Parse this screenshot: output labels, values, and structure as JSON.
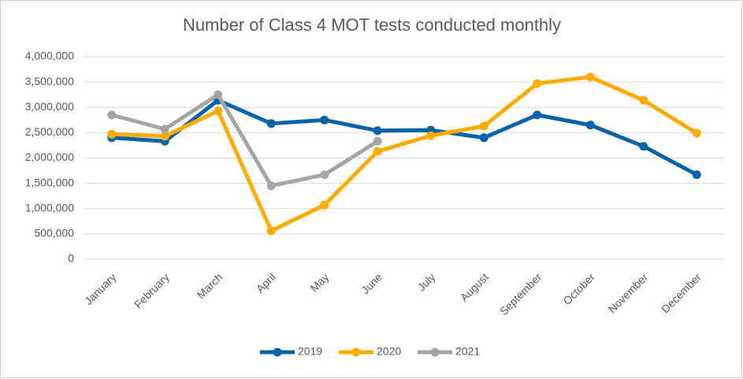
{
  "chart_data": {
    "type": "line",
    "title": "Number of Class 4 MOT tests conducted monthly",
    "categories": [
      "January",
      "February",
      "March",
      "April",
      "May",
      "June",
      "July",
      "August",
      "September",
      "October",
      "November",
      "December"
    ],
    "series": [
      {
        "name": "2019",
        "color": "#0563a8",
        "values": [
          2400000,
          2330000,
          3140000,
          2680000,
          2750000,
          2540000,
          2550000,
          2400000,
          2850000,
          2650000,
          2230000,
          1670000
        ]
      },
      {
        "name": "2020",
        "color": "#ffab00",
        "values": [
          2470000,
          2430000,
          2930000,
          560000,
          1070000,
          2130000,
          2440000,
          2630000,
          3470000,
          3600000,
          3140000,
          2490000
        ]
      },
      {
        "name": "2021",
        "color": "#a5a5a5",
        "values": [
          2850000,
          2570000,
          3250000,
          1450000,
          1670000,
          2330000,
          null,
          null,
          null,
          null,
          null,
          null
        ]
      }
    ],
    "ylim": [
      0,
      4000000
    ],
    "yticks": [
      0,
      {
        "value": 500000,
        "label": "500,000"
      },
      {
        "value": 1000000,
        "label": "1,000,000"
      },
      {
        "value": 1500000,
        "label": "1,500,000"
      },
      {
        "value": 2000000,
        "label": "2,000,000"
      },
      {
        "value": 2500000,
        "label": "2,500,000"
      },
      {
        "value": 3000000,
        "label": "3,000,000"
      },
      {
        "value": 3500000,
        "label": "3,500,000"
      },
      {
        "value": 4000000,
        "label": "4,000,000"
      }
    ],
    "grid": true,
    "legend": "bottom"
  }
}
